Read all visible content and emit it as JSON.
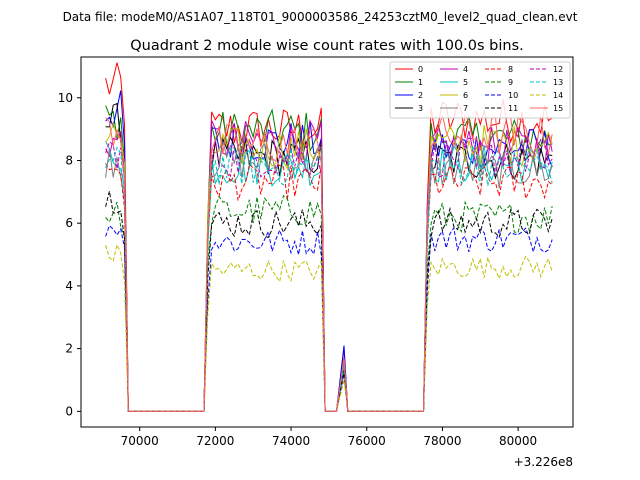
{
  "figure": {
    "suptitle": "Data file: modeM0/AS1A07_118T01_9000003586_24253cztM0_level2_quad_clean.evt",
    "offset_label": "+3.226e8"
  },
  "chart_data": {
    "type": "line",
    "title": "Quadrant 2 module wise count rates with 100.0s bins.",
    "xlabel": "",
    "ylabel": "",
    "x_offset": 322600000,
    "xlim": [
      68450,
      81450
    ],
    "ylim": [
      -0.5,
      11.3
    ],
    "xticks": [
      70000,
      72000,
      74000,
      76000,
      78000,
      80000
    ],
    "yticks": [
      0,
      2,
      4,
      6,
      8,
      10
    ],
    "grid": false,
    "legend_placement": "top-right",
    "legend_columns": 4,
    "segments": [
      {
        "x_start": 69100,
        "x_end": 69600
      },
      {
        "x_start": 71800,
        "x_end": 74800
      },
      {
        "x_start": 75400,
        "x_end": 75400
      },
      {
        "x_start": 77600,
        "x_end": 80900
      }
    ],
    "gap_x": [
      69700,
      71700,
      74900,
      75200,
      75500,
      77500
    ],
    "series": [
      {
        "name": "0",
        "color": "#ff0000",
        "dash": false,
        "seg_values": [
          10.4,
          9.0,
          2.0,
          9.3
        ]
      },
      {
        "name": "1",
        "color": "#008000",
        "dash": false,
        "seg_values": [
          9.3,
          8.9,
          1.7,
          8.7
        ]
      },
      {
        "name": "2",
        "color": "#0000ff",
        "dash": false,
        "seg_values": [
          9.6,
          8.6,
          2.1,
          8.4
        ]
      },
      {
        "name": "3",
        "color": "#000000",
        "dash": false,
        "seg_values": [
          9.2,
          8.1,
          1.7,
          8.0
        ]
      },
      {
        "name": "4",
        "color": "#bf00bf",
        "dash": false,
        "seg_values": [
          8.6,
          8.6,
          1.6,
          8.4
        ]
      },
      {
        "name": "5",
        "color": "#00bfbf",
        "dash": false,
        "seg_values": [
          8.2,
          7.8,
          1.5,
          7.9
        ]
      },
      {
        "name": "6",
        "color": "#bfbf00",
        "dash": false,
        "seg_values": [
          8.8,
          8.4,
          1.7,
          8.5
        ]
      },
      {
        "name": "7",
        "color": "#808080",
        "dash": false,
        "seg_values": [
          8.0,
          8.0,
          1.6,
          7.7
        ]
      },
      {
        "name": "8",
        "color": "#ff0000",
        "dash": true,
        "seg_values": [
          7.8,
          7.3,
          1.5,
          7.3
        ]
      },
      {
        "name": "9",
        "color": "#008000",
        "dash": true,
        "seg_values": [
          6.3,
          6.4,
          1.3,
          6.2
        ]
      },
      {
        "name": "10",
        "color": "#0000ff",
        "dash": true,
        "seg_values": [
          5.9,
          5.4,
          1.2,
          5.5
        ]
      },
      {
        "name": "11",
        "color": "#000000",
        "dash": true,
        "seg_values": [
          6.8,
          6.0,
          1.3,
          6.0
        ]
      },
      {
        "name": "12",
        "color": "#bf00bf",
        "dash": true,
        "seg_values": [
          8.3,
          8.1,
          1.6,
          8.1
        ]
      },
      {
        "name": "13",
        "color": "#00bfbf",
        "dash": true,
        "seg_values": [
          7.9,
          7.8,
          1.5,
          7.8
        ]
      },
      {
        "name": "14",
        "color": "#bfbf00",
        "dash": true,
        "seg_values": [
          5.0,
          4.5,
          1.0,
          4.6
        ]
      },
      {
        "name": "15",
        "color": "#ff6060",
        "dash": false,
        "seg_values": [
          9.0,
          8.5,
          1.7,
          8.8
        ]
      }
    ]
  }
}
